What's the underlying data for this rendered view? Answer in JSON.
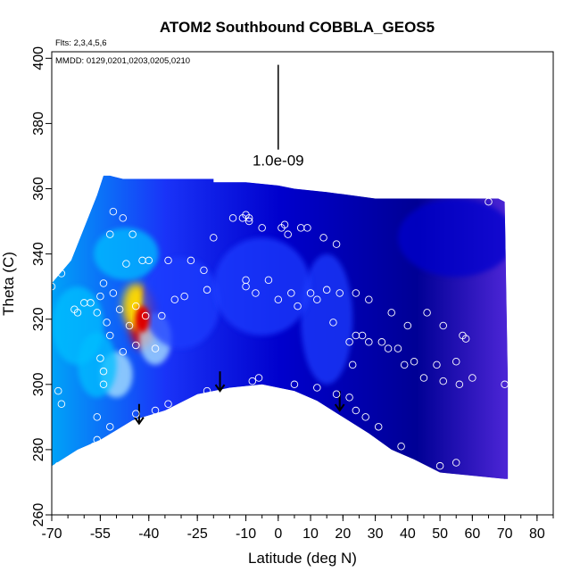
{
  "chart_data": {
    "type": "heatmap",
    "title": "ATOM2 Southbound COBBLA_GEOS5",
    "flights_note": "Flts: 2,3,4,5,6",
    "dates_note": "MMDD: 0129,0201,0203,0205,0210",
    "xlabel": "Latitude (deg N)",
    "ylabel": "Theta (C)",
    "xlim": [
      -70,
      85
    ],
    "ylim": [
      260,
      402
    ],
    "x_ticks": [
      -70,
      -55,
      -40,
      -25,
      -10,
      0,
      10,
      20,
      30,
      40,
      50,
      60,
      70,
      80
    ],
    "y_ticks": [
      260,
      280,
      300,
      320,
      340,
      360,
      380,
      400
    ],
    "scale_bar_label": "1.0e-09",
    "scale_bar": {
      "x": 0,
      "y_top": 398,
      "y_bottom": 372
    },
    "colormap": [
      "#00008b",
      "#0000cd",
      "#1e3cff",
      "#00bfff",
      "#b0e8ff",
      "#ffffff",
      "#ffe000",
      "#ff8c00",
      "#dd0000"
    ],
    "field_top": [
      [
        -70,
        331
      ],
      [
        -64,
        338
      ],
      [
        -60,
        348
      ],
      [
        -56,
        358
      ],
      [
        -54,
        364
      ],
      [
        -52,
        364
      ],
      [
        -48,
        363
      ],
      [
        -20,
        363
      ],
      [
        -20,
        362
      ],
      [
        -10,
        362
      ],
      [
        0,
        361
      ],
      [
        5,
        360
      ],
      [
        15,
        359
      ],
      [
        30,
        357
      ],
      [
        45,
        357
      ],
      [
        60,
        357
      ],
      [
        68,
        357
      ],
      [
        70,
        356
      ],
      [
        71,
        300
      ],
      [
        71,
        271
      ]
    ],
    "field_bottom": [
      [
        -70,
        275
      ],
      [
        -62,
        280
      ],
      [
        -55,
        283
      ],
      [
        -45,
        289
      ],
      [
        -35,
        292
      ],
      [
        -25,
        297
      ],
      [
        -15,
        299
      ],
      [
        -5,
        300
      ],
      [
        5,
        298
      ],
      [
        12,
        295
      ],
      [
        20,
        290
      ],
      [
        28,
        285
      ],
      [
        35,
        280
      ],
      [
        42,
        277
      ],
      [
        50,
        273
      ],
      [
        60,
        272
      ],
      [
        70,
        271
      ]
    ],
    "hotspots": [
      {
        "x": -42,
        "y": 320,
        "rx": 4,
        "ry": 9,
        "level": 8
      },
      {
        "x": -44,
        "y": 324,
        "rx": 4,
        "ry": 7,
        "level": 6
      },
      {
        "x": -38,
        "y": 314,
        "rx": 5,
        "ry": 8,
        "level": 4
      },
      {
        "x": -50,
        "y": 303,
        "rx": 5,
        "ry": 7,
        "level": 4
      },
      {
        "x": -56,
        "y": 306,
        "rx": 6,
        "ry": 10,
        "level": 3
      },
      {
        "x": -62,
        "y": 318,
        "rx": 8,
        "ry": 12,
        "level": 3
      },
      {
        "x": -47,
        "y": 340,
        "rx": 10,
        "ry": 8,
        "level": 3
      },
      {
        "x": -30,
        "y": 325,
        "rx": 12,
        "ry": 14,
        "level": 2
      },
      {
        "x": 15,
        "y": 320,
        "rx": 8,
        "ry": 20,
        "level": 2
      },
      {
        "x": -5,
        "y": 330,
        "rx": 15,
        "ry": 15,
        "level": 2
      },
      {
        "x": 55,
        "y": 345,
        "rx": 18,
        "ry": 12,
        "level": 1.4
      }
    ],
    "arrows": [
      {
        "x": -43,
        "y_top": 294,
        "y_bottom": 288
      },
      {
        "x": -18,
        "y_top": 304,
        "y_bottom": 298
      },
      {
        "x": 19,
        "y_top": 298,
        "y_bottom": 292
      }
    ],
    "samples": [
      {
        "x": -70,
        "y": 330
      },
      {
        "x": -68,
        "y": 337
      },
      {
        "x": -67,
        "y": 334
      },
      {
        "x": -63,
        "y": 323
      },
      {
        "x": -62,
        "y": 322
      },
      {
        "x": -60,
        "y": 325
      },
      {
        "x": -55,
        "y": 327
      },
      {
        "x": -53,
        "y": 319
      },
      {
        "x": -52,
        "y": 315
      },
      {
        "x": -51,
        "y": 328
      },
      {
        "x": -52,
        "y": 346
      },
      {
        "x": -51,
        "y": 353
      },
      {
        "x": -48,
        "y": 351
      },
      {
        "x": -47,
        "y": 337
      },
      {
        "x": -42,
        "y": 338
      },
      {
        "x": -40,
        "y": 338
      },
      {
        "x": -45,
        "y": 346
      },
      {
        "x": -34,
        "y": 338
      },
      {
        "x": -27,
        "y": 338
      },
      {
        "x": -23,
        "y": 335
      },
      {
        "x": -22,
        "y": 329
      },
      {
        "x": -20,
        "y": 345
      },
      {
        "x": -14,
        "y": 351
      },
      {
        "x": -11,
        "y": 351
      },
      {
        "x": -10,
        "y": 352
      },
      {
        "x": -9,
        "y": 351
      },
      {
        "x": -9,
        "y": 350
      },
      {
        "x": -5,
        "y": 348
      },
      {
        "x": 1,
        "y": 348
      },
      {
        "x": 2,
        "y": 349
      },
      {
        "x": 3,
        "y": 346
      },
      {
        "x": 7,
        "y": 348
      },
      {
        "x": 9,
        "y": 348
      },
      {
        "x": 14,
        "y": 345
      },
      {
        "x": 18,
        "y": 343
      },
      {
        "x": -10,
        "y": 332
      },
      {
        "x": -10,
        "y": 330
      },
      {
        "x": -7,
        "y": 328
      },
      {
        "x": -3,
        "y": 332
      },
      {
        "x": 0,
        "y": 326
      },
      {
        "x": 4,
        "y": 328
      },
      {
        "x": 6,
        "y": 324
      },
      {
        "x": 10,
        "y": 328
      },
      {
        "x": 12,
        "y": 326
      },
      {
        "x": 15,
        "y": 329
      },
      {
        "x": 19,
        "y": 328
      },
      {
        "x": 17,
        "y": 319
      },
      {
        "x": 24,
        "y": 328
      },
      {
        "x": 28,
        "y": 326
      },
      {
        "x": -56,
        "y": 322
      },
      {
        "x": -58,
        "y": 325
      },
      {
        "x": -54,
        "y": 331
      },
      {
        "x": -49,
        "y": 323
      },
      {
        "x": -44,
        "y": 324
      },
      {
        "x": -46,
        "y": 318
      },
      {
        "x": -41,
        "y": 321
      },
      {
        "x": -36,
        "y": 321
      },
      {
        "x": -32,
        "y": 326
      },
      {
        "x": -29,
        "y": 327
      },
      {
        "x": -55,
        "y": 308
      },
      {
        "x": -54,
        "y": 304
      },
      {
        "x": -54,
        "y": 300
      },
      {
        "x": -48,
        "y": 310
      },
      {
        "x": -44,
        "y": 312
      },
      {
        "x": -38,
        "y": 311
      },
      {
        "x": -68,
        "y": 298
      },
      {
        "x": -67,
        "y": 294
      },
      {
        "x": -56,
        "y": 290
      },
      {
        "x": -52,
        "y": 287
      },
      {
        "x": -44,
        "y": 291
      },
      {
        "x": -38,
        "y": 292
      },
      {
        "x": -34,
        "y": 294
      },
      {
        "x": -22,
        "y": 298
      },
      {
        "x": -8,
        "y": 301
      },
      {
        "x": -6,
        "y": 302
      },
      {
        "x": 5,
        "y": 300
      },
      {
        "x": 12,
        "y": 299
      },
      {
        "x": 18,
        "y": 297
      },
      {
        "x": 22,
        "y": 296
      },
      {
        "x": 24,
        "y": 292
      },
      {
        "x": 27,
        "y": 290
      },
      {
        "x": 31,
        "y": 287
      },
      {
        "x": 38,
        "y": 281
      },
      {
        "x": 50,
        "y": 275
      },
      {
        "x": 55,
        "y": 276
      },
      {
        "x": -68,
        "y": 275
      },
      {
        "x": -56,
        "y": 283
      },
      {
        "x": -57,
        "y": 281
      },
      {
        "x": 22,
        "y": 313
      },
      {
        "x": 24,
        "y": 315
      },
      {
        "x": 26,
        "y": 315
      },
      {
        "x": 28,
        "y": 313
      },
      {
        "x": 32,
        "y": 313
      },
      {
        "x": 34,
        "y": 311
      },
      {
        "x": 37,
        "y": 311
      },
      {
        "x": 40,
        "y": 318
      },
      {
        "x": 46,
        "y": 322
      },
      {
        "x": 51,
        "y": 318
      },
      {
        "x": 57,
        "y": 315
      },
      {
        "x": 58,
        "y": 314
      },
      {
        "x": 35,
        "y": 322
      },
      {
        "x": 23,
        "y": 306
      },
      {
        "x": 39,
        "y": 306
      },
      {
        "x": 42,
        "y": 307
      },
      {
        "x": 45,
        "y": 302
      },
      {
        "x": 49,
        "y": 306
      },
      {
        "x": 51,
        "y": 301
      },
      {
        "x": 55,
        "y": 307
      },
      {
        "x": 56,
        "y": 300
      },
      {
        "x": 60,
        "y": 302
      },
      {
        "x": 65,
        "y": 356
      },
      {
        "x": 70,
        "y": 300
      }
    ]
  }
}
